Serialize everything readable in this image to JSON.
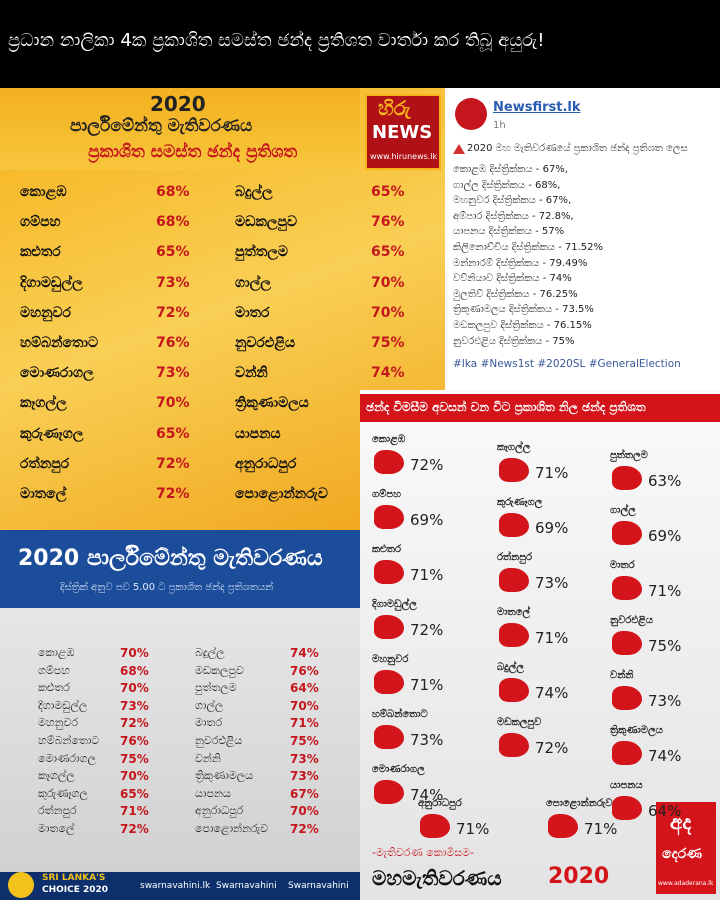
{
  "banner": {
    "title": "ප්‍රධාන නාලිකා 4ක ප්‍රකාශිත සමස්ත ඡන්ද ප්‍රතිශත වාර්තා කර තිබූ අයුරු!"
  },
  "hiru": {
    "year": "2020",
    "title": "පාර්ලිමේන්තු මැතිවරණය",
    "subtitle": "ප්‍රකාශිත සමස්ත ඡන්ද ප්‍රතිශත",
    "logo": "හිරු",
    "logo_sub": "NEWS",
    "website": "www.hirunews.lk",
    "left": [
      {
        "district": "කොළඹ",
        "value": "68%"
      },
      {
        "district": "ගම්පහ",
        "value": "68%"
      },
      {
        "district": "කළුතර",
        "value": "65%"
      },
      {
        "district": "දිගාමඩුල්ල",
        "value": "73%"
      },
      {
        "district": "මහනුවර",
        "value": "72%"
      },
      {
        "district": "හම්බන්තොට",
        "value": "76%"
      },
      {
        "district": "මොණරාගල",
        "value": "73%"
      },
      {
        "district": "කෑගල්ල",
        "value": "70%"
      },
      {
        "district": "කුරුණෑගල",
        "value": "65%"
      },
      {
        "district": "රත්නපුර",
        "value": "72%"
      },
      {
        "district": "මාතලේ",
        "value": "72%"
      }
    ],
    "right": [
      {
        "district": "බදුල්ල",
        "value": "65%"
      },
      {
        "district": "මඩකලපුව",
        "value": "76%"
      },
      {
        "district": "පුත්තලම",
        "value": "65%"
      },
      {
        "district": "ගාල්ල",
        "value": "70%"
      },
      {
        "district": "මාතර",
        "value": "70%"
      },
      {
        "district": "නුවරඑළිය",
        "value": "75%"
      },
      {
        "district": "වන්නි",
        "value": "74%"
      },
      {
        "district": "ත්‍රිකුණාමලය"
      },
      {
        "district": "යාපනය"
      },
      {
        "district": "අනුරාධපුර"
      },
      {
        "district": "පොළොන්නරුව"
      }
    ]
  },
  "newsfirst": {
    "page": "Newsfirst.lk",
    "time": "1h",
    "intro": "2020 මහ මැතිවරණයේ ප්‍රකාශිත ඡන්ද ප්‍රතිශත ලෙස",
    "lines": [
      "කොළඹ දිස්ත්‍රික්කය - 67%,",
      "ගාල්ල දිස්ත්‍රික්කය - 68%,",
      "මහනුවර දිස්ත්‍රික්කය - 67%,",
      "අම්පාර දිස්ත්‍රික්කය - 72.8%,",
      "යාපනය දිස්ත්‍රික්කය - 57%",
      "කිලිනොච්චිය දිස්ත්‍රික්කය - 71.52%",
      "මන්නාරම් දිස්ත්‍රික්කය - 79.49%",
      "වව්නියාව දිස්ත්‍රික්කය - 74%",
      "මුලතිව් දිස්ත්‍රික්කය - 76.25%",
      "ත්‍රිකුණාමලය දිස්ත්‍රික්කය - 73.5%",
      "මඩකලපුව දිස්ත්‍රික්කය - 76.15%",
      "නුවරඑළිය දිස්ත්‍රික්කය - 75%"
    ],
    "hashtags": "#Ika #News1st #2020SL #GeneralElection"
  },
  "swarnavahini": {
    "title": "2020 පාර්ලිමේන්තු මැතිවරණය",
    "subtitle": "දිස්ත්‍රික් අනුව පව 5.00 ට ප්‍රකාශිත ඡන්ද ප්‍රතිශතයන්",
    "left": [
      {
        "district": "කොළඹ",
        "value": "70%"
      },
      {
        "district": "ගම්පහ",
        "value": "68%"
      },
      {
        "district": "කළුතර",
        "value": "70%"
      },
      {
        "district": "දිගාමඩුල්ල",
        "value": "73%"
      },
      {
        "district": "මහනුවර",
        "value": "72%"
      },
      {
        "district": "හම්බන්තොට",
        "value": "76%"
      },
      {
        "district": "මොණරාගල",
        "value": "75%"
      },
      {
        "district": "කෑගල්ල",
        "value": "70%"
      },
      {
        "district": "කුරුණෑගල",
        "value": "65%"
      },
      {
        "district": "රත්නපුර",
        "value": "71%"
      },
      {
        "district": "මාතලේ",
        "value": "72%"
      }
    ],
    "right": [
      {
        "district": "බදුල්ල",
        "value": "74%"
      },
      {
        "district": "මඩකලපුව",
        "value": "76%"
      },
      {
        "district": "පුත්තලම",
        "value": "64%"
      },
      {
        "district": "ගාල්ල",
        "value": "70%"
      },
      {
        "district": "මාතර",
        "value": "71%"
      },
      {
        "district": "නුවරඑළිය",
        "value": "75%"
      },
      {
        "district": "වන්නි",
        "value": "73%"
      },
      {
        "district": "ත්‍රිකුණාමලය",
        "value": "73%"
      },
      {
        "district": "යාපනය",
        "value": "67%"
      },
      {
        "district": "අනුරාධපුර",
        "value": "70%"
      },
      {
        "district": "පොළොන්නරුව",
        "value": "72%"
      }
    ],
    "footer": {
      "brand": "SRI LANKA'S",
      "brand2": "CHOICE 2020",
      "website": "swarnavahini.lk",
      "facebook": "Swarnavahini",
      "youtube": "Swarnavahini"
    }
  },
  "derana": {
    "header": "ඡන්ද විමසීම අවසන් වන විට ප්‍රකාශිත නිල ඡන්ද ප්‍රතිශත",
    "columns": [
      [
        {
          "district": "කොළඹ",
          "value": "72%"
        },
        {
          "district": "ගම්පහ",
          "value": "69%"
        },
        {
          "district": "කළුතර",
          "value": "71%"
        },
        {
          "district": "දිගාමඩුල්ල",
          "value": "72%"
        },
        {
          "district": "මහනුවර",
          "value": "71%"
        },
        {
          "district": "හම්බන්තොට",
          "value": "73%"
        },
        {
          "district": "මොණරාගල",
          "value": "74%"
        }
      ],
      [
        {
          "district": "කෑගල්ල",
          "value": "71%"
        },
        {
          "district": "කුරුණෑගල",
          "value": "69%"
        },
        {
          "district": "රත්නපුර",
          "value": "73%"
        },
        {
          "district": "මාතලේ",
          "value": "71%"
        },
        {
          "district": "බදුල්ල",
          "value": "74%"
        },
        {
          "district": "මඩකලපුව",
          "value": "72%"
        }
      ],
      [
        {
          "district": "පුත්තලම",
          "value": "63%"
        },
        {
          "district": "ගාල්ල",
          "value": "69%"
        },
        {
          "district": "මාතර",
          "value": "71%"
        },
        {
          "district": "නුවරඑළිය",
          "value": "75%"
        },
        {
          "district": "වන්නි",
          "value": "73%"
        },
        {
          "district": "ත්‍රිකුණාමලය",
          "value": "74%"
        },
        {
          "district": "යාපනය",
          "value": "64%"
        }
      ]
    ],
    "bottom": [
      {
        "district": "අනුරාධපුර",
        "value": "71%"
      },
      {
        "district": "පොළොන්නරුව",
        "value": "71%"
      }
    ],
    "commission": "-මැතිවරණ කොමිසම-",
    "footer_title": "මහමැතිවරණය",
    "footer_year": "2020",
    "logo_top": "අද",
    "logo_bottom": "දෙරණ",
    "website": "www.adaderana.lk"
  }
}
